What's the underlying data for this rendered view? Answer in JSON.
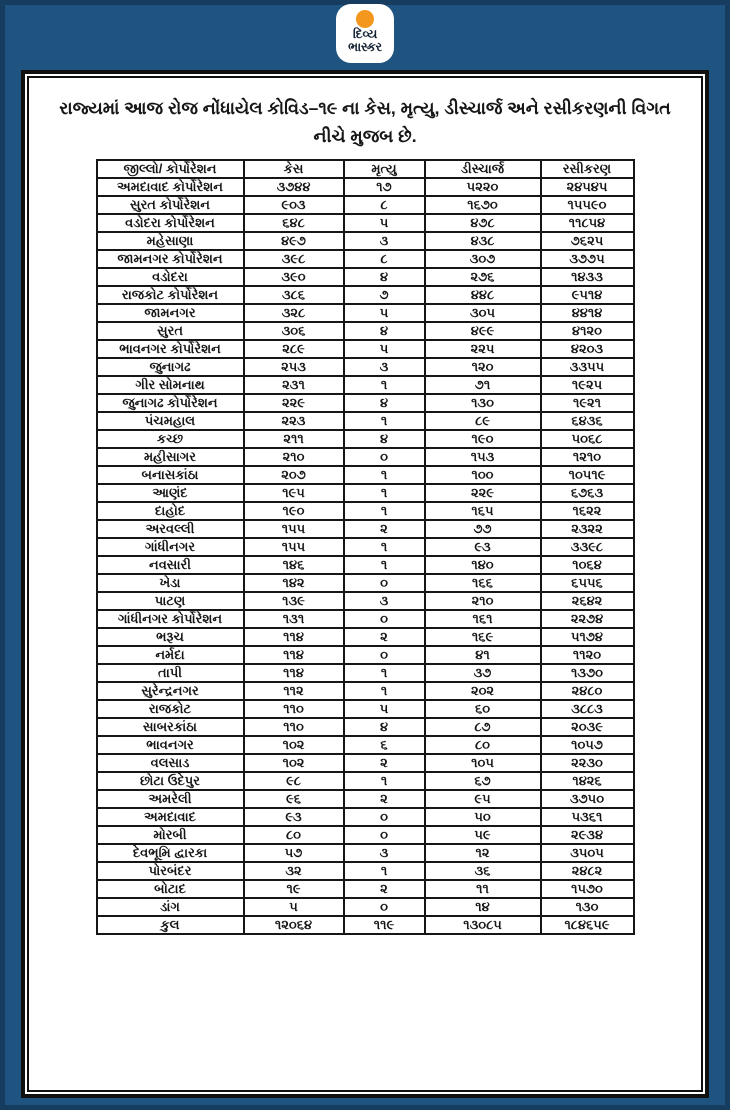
{
  "page": {
    "background_color": "#1f5480",
    "card_background": "#ffffff",
    "border_color": "#101010",
    "text_color": "#161616"
  },
  "logo": {
    "line1": "દિવ્ય",
    "line2": "ભાસ્કર",
    "sun_color": "#f3981c",
    "tile_color": "#ffffff",
    "text_color": "#152334"
  },
  "title": "રાજ્યમાં આજ રોજ નોંધાયેલ કોવિડ–૧૯ ના કેસ, મૃત્યુ, ડીસ્ચાર્જ અને રસીકરણની વિગત નીચે મુજબ છે.",
  "chart_data": {
    "type": "table",
    "title": "રાજ્યમાં આજ રોજ નોંધાયેલ કોવિડ–૧૯ ના કેસ, મૃત્યુ, ડીસ્ચાર્જ અને રસીકરણની વિગત",
    "digit_system": "gujarati",
    "columns": [
      "જીલ્લો/ કોર્પોરેશન",
      "કેસ",
      "મૃત્યુ",
      "ડીસ્ચાર્જ",
      "રસીકરણ"
    ],
    "rows": [
      {
        "cells": [
          "અમદાવાદ કોર્પોરેશન",
          "૩૭૪૪",
          "૧૭",
          "૫૨૨૦",
          "૨૪૫૪૫"
        ],
        "values": [
          3744,
          17,
          5220,
          24545
        ]
      },
      {
        "cells": [
          "સુરત કોર્પોરેશન",
          "૯૦૩",
          "૮",
          "૧૬૭૦",
          "૧૫૫૯૦"
        ],
        "values": [
          903,
          8,
          1670,
          15590
        ]
      },
      {
        "cells": [
          "વડોદરા કોર્પોરેશન",
          "૬૪૮",
          "૫",
          "૪૭૮",
          "૧૧૮૫૪"
        ],
        "values": [
          648,
          5,
          478,
          11854
        ]
      },
      {
        "cells": [
          "મહેસાણા",
          "૪૯૭",
          "૩",
          "૪૩૮",
          "૭૬૨૫"
        ],
        "values": [
          497,
          3,
          438,
          7625
        ]
      },
      {
        "cells": [
          "જામનગર કોર્પોરેશન",
          "૩૯૮",
          "૮",
          "૩૦૭",
          "૩૭૭૫"
        ],
        "values": [
          398,
          8,
          307,
          3775
        ]
      },
      {
        "cells": [
          "વડોદરા",
          "૩૯૦",
          "૪",
          "૨૭૬",
          "૧૪૩૩"
        ],
        "values": [
          390,
          4,
          276,
          1433
        ]
      },
      {
        "cells": [
          "રાજકોટ કોર્પોરેશન",
          "૩૮૬",
          "૭",
          "૪૪૮",
          "૯૫૧૪"
        ],
        "values": [
          386,
          7,
          448,
          9514
        ]
      },
      {
        "cells": [
          "જામનગર",
          "૩૨૮",
          "૫",
          "૩૦૫",
          "૪૪૧૪"
        ],
        "values": [
          328,
          5,
          305,
          4414
        ]
      },
      {
        "cells": [
          "સુરત",
          "૩૦૬",
          "૪",
          "૪૯૯",
          "૪૧૨૦"
        ],
        "values": [
          306,
          4,
          499,
          4120
        ]
      },
      {
        "cells": [
          "ભાવનગર કોર્પોરેશન",
          "૨૮૯",
          "૫",
          "૨૨૫",
          "૪૨૦૩"
        ],
        "values": [
          289,
          5,
          225,
          4203
        ]
      },
      {
        "cells": [
          "જુનાગઢ",
          "૨૫૩",
          "૩",
          "૧૨૦",
          "૩૩૫૫"
        ],
        "values": [
          253,
          3,
          120,
          3355
        ]
      },
      {
        "cells": [
          "ગીર સોમનાથ",
          "૨૩૧",
          "૧",
          "૭૧",
          "૧૯૨૫"
        ],
        "values": [
          231,
          1,
          71,
          1925
        ]
      },
      {
        "cells": [
          "જુનાગઢ કોર્પોરેશન",
          "૨૨૯",
          "૪",
          "૧૩૦",
          "૧૯૨૧"
        ],
        "values": [
          229,
          4,
          130,
          1921
        ]
      },
      {
        "cells": [
          "પંચમહાલ",
          "૨૨૩",
          "૧",
          "૮૯",
          "૬૪૩૬"
        ],
        "values": [
          223,
          1,
          89,
          6436
        ]
      },
      {
        "cells": [
          "કચ્છ",
          "૨૧૧",
          "૪",
          "૧૯૦",
          "૫૦૬૮"
        ],
        "values": [
          211,
          4,
          190,
          5068
        ]
      },
      {
        "cells": [
          "મહીસાગર",
          "૨૧૦",
          "૦",
          "૧૫૩",
          "૧૨૧૦"
        ],
        "values": [
          210,
          0,
          153,
          1210
        ]
      },
      {
        "cells": [
          "બનાસકાંઠા",
          "૨૦૭",
          "૧",
          "૧૦૦",
          "૧૦૫૧૯"
        ],
        "values": [
          207,
          1,
          100,
          10519
        ]
      },
      {
        "cells": [
          "આણંદ",
          "૧૯૫",
          "૧",
          "૨૨૯",
          "૬૭૬૩"
        ],
        "values": [
          195,
          1,
          229,
          6763
        ]
      },
      {
        "cells": [
          "દાહોદ",
          "૧૯૦",
          "૧",
          "૧૬૫",
          "૧૬૨૨"
        ],
        "values": [
          190,
          1,
          165,
          1622
        ]
      },
      {
        "cells": [
          "અરવલ્લી",
          "૧૫૫",
          "૨",
          "૭૭",
          "૨૩૨૨"
        ],
        "values": [
          155,
          2,
          77,
          2322
        ]
      },
      {
        "cells": [
          "ગાંધીનગર",
          "૧૫૫",
          "૧",
          "૯૩",
          "૩૩૯૮"
        ],
        "values": [
          155,
          1,
          93,
          3398
        ]
      },
      {
        "cells": [
          "નવસારી",
          "૧૪૬",
          "૧",
          "૧૪૦",
          "૧૦૬૪"
        ],
        "values": [
          146,
          1,
          140,
          1064
        ]
      },
      {
        "cells": [
          "ખેડા",
          "૧૪૨",
          "૦",
          "૧૬૬",
          "૬૫૫૬"
        ],
        "values": [
          142,
          0,
          166,
          6556
        ]
      },
      {
        "cells": [
          "પાટણ",
          "૧૩૯",
          "૩",
          "૨૧૦",
          "૨૬૪૨"
        ],
        "values": [
          139,
          3,
          210,
          2642
        ]
      },
      {
        "cells": [
          "ગાંધીનગર કોર્પોરેશન",
          "૧૩૧",
          "૦",
          "૧૬૧",
          "૨૨૭૪"
        ],
        "values": [
          131,
          0,
          161,
          2274
        ]
      },
      {
        "cells": [
          "ભરૂચ",
          "૧૧૪",
          "૨",
          "૧૬૯",
          "૫૧૭૪"
        ],
        "values": [
          114,
          2,
          169,
          5174
        ]
      },
      {
        "cells": [
          "નર્મદા",
          "૧૧૪",
          "૦",
          "૪૧",
          "૧૧૨૦"
        ],
        "values": [
          114,
          0,
          41,
          1120
        ]
      },
      {
        "cells": [
          "તાપી",
          "૧૧૪",
          "૧",
          "૩૭",
          "૧૩૭૦"
        ],
        "values": [
          114,
          1,
          37,
          1370
        ]
      },
      {
        "cells": [
          "સુરેન્દ્રનગર",
          "૧૧૨",
          "૧",
          "૨૦૨",
          "૨૪૮૦"
        ],
        "values": [
          112,
          1,
          202,
          2480
        ]
      },
      {
        "cells": [
          "રાજકોટ",
          "૧૧૦",
          "૫",
          "૬૦",
          "૩૮૮૩"
        ],
        "values": [
          110,
          5,
          60,
          3883
        ]
      },
      {
        "cells": [
          "સાબરકાંઠા",
          "૧૧૦",
          "૪",
          "૮૭",
          "૨૦૩૯"
        ],
        "values": [
          110,
          4,
          87,
          2039
        ]
      },
      {
        "cells": [
          "ભાવનગર",
          "૧૦૨",
          "૬",
          "૮૦",
          "૧૦૫૭"
        ],
        "values": [
          102,
          6,
          80,
          1057
        ]
      },
      {
        "cells": [
          "વલસાડ",
          "૧૦૨",
          "૨",
          "૧૦૫",
          "૨૨૩૦"
        ],
        "values": [
          102,
          2,
          105,
          2230
        ]
      },
      {
        "cells": [
          "છોટા ઉદેપુર",
          "૯૮",
          "૧",
          "૬૭",
          "૧૪૨૬"
        ],
        "values": [
          98,
          1,
          67,
          1426
        ]
      },
      {
        "cells": [
          "અમરેલી",
          "૯૬",
          "૨",
          "૯૫",
          "૩૭૫૦"
        ],
        "values": [
          96,
          2,
          95,
          3750
        ]
      },
      {
        "cells": [
          "અમદાવાદ",
          "૯૩",
          "૦",
          "૫૦",
          "૫૩૬૧"
        ],
        "values": [
          93,
          0,
          50,
          5361
        ]
      },
      {
        "cells": [
          "મોરબી",
          "૮૦",
          "૦",
          "૫૯",
          "૨૯૩૪"
        ],
        "values": [
          80,
          0,
          59,
          2934
        ]
      },
      {
        "cells": [
          "દેવભૂમિ દ્વારકા",
          "૫૭",
          "૩",
          "૧૨",
          "૩૫૦૫"
        ],
        "values": [
          57,
          3,
          12,
          3505
        ]
      },
      {
        "cells": [
          "પોરબંદર",
          "૩૨",
          "૧",
          "૩૬",
          "૨૪૮૨"
        ],
        "values": [
          32,
          1,
          36,
          2482
        ]
      },
      {
        "cells": [
          "બોટાદ",
          "૧૯",
          "૨",
          "૧૧",
          "૧૫૭૦"
        ],
        "values": [
          19,
          2,
          11,
          1570
        ]
      },
      {
        "cells": [
          "ડાંગ",
          "૫",
          "૦",
          "૧૪",
          "૧૩૦"
        ],
        "values": [
          5,
          0,
          14,
          130
        ]
      }
    ],
    "total": {
      "cells": [
        "કુલ",
        "૧૨૦૬૪",
        "૧૧૯",
        "૧૩૦૮૫",
        "૧૮૪૬૫૯"
      ],
      "values": [
        12064,
        119,
        13085,
        184659
      ]
    }
  }
}
